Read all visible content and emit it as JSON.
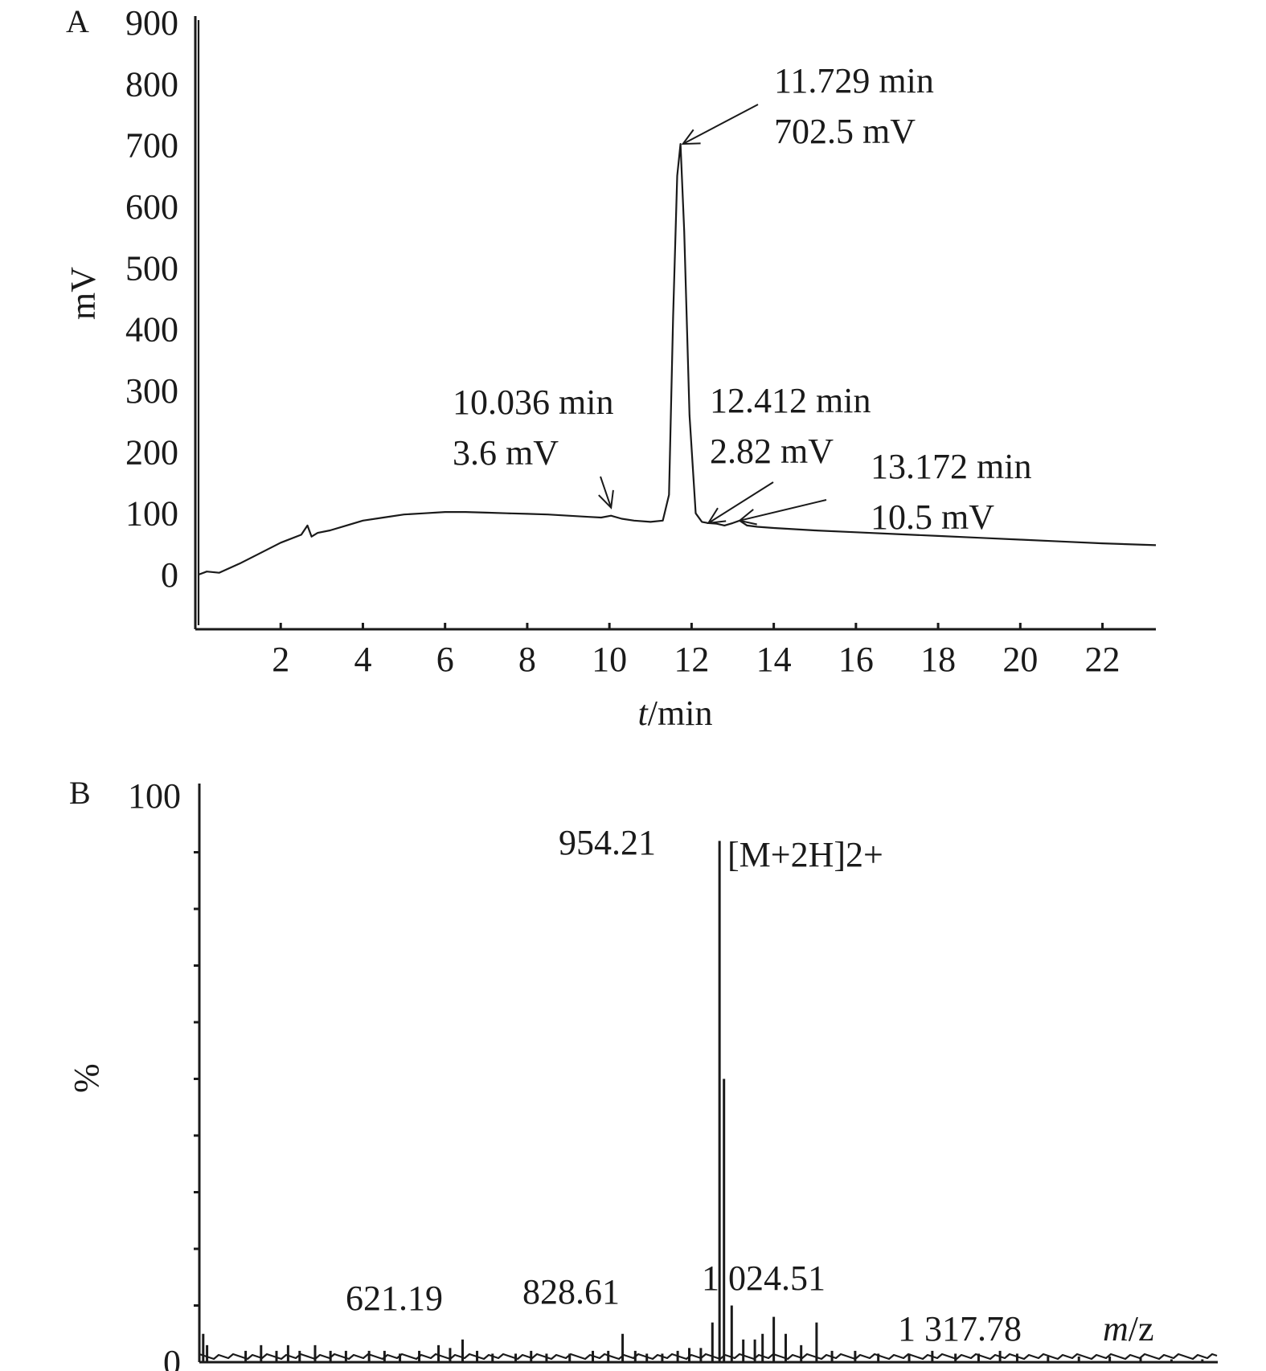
{
  "chart_data": [
    {
      "panel": "A",
      "type": "line",
      "xlabel_italic": "t",
      "xlabel_rest": "/min",
      "ylabel": "mV",
      "xlim": [
        0,
        23.3
      ],
      "ylim": [
        -80,
        900
      ],
      "xticks": [
        2,
        4,
        6,
        8,
        10,
        12,
        14,
        16,
        18,
        20,
        22
      ],
      "yticks": [
        0,
        100,
        200,
        300,
        400,
        500,
        600,
        700,
        800,
        900
      ],
      "trace": {
        "x": [
          0.0,
          0.2,
          0.5,
          1.0,
          1.5,
          2.0,
          2.5,
          2.65,
          2.75,
          2.9,
          3.2,
          3.6,
          4.0,
          4.5,
          5.0,
          5.5,
          6.0,
          6.5,
          7.0,
          7.5,
          8.0,
          8.5,
          9.0,
          9.5,
          9.8,
          10.04,
          10.3,
          10.6,
          11.0,
          11.3,
          11.45,
          11.55,
          11.65,
          11.73,
          11.82,
          11.95,
          12.1,
          12.25,
          12.41,
          12.6,
          12.8,
          13.0,
          13.17,
          13.35,
          13.6,
          14.0,
          15.0,
          16.0,
          17.0,
          18.0,
          19.0,
          20.0,
          21.0,
          22.0,
          23.3
        ],
        "y": [
          0,
          5,
          3,
          18,
          35,
          52,
          65,
          80,
          62,
          68,
          72,
          80,
          88,
          93,
          98,
          100,
          102,
          102,
          101,
          100,
          99,
          98,
          96,
          94,
          93,
          96,
          91,
          88,
          86,
          88,
          130,
          420,
          650,
          702,
          560,
          260,
          100,
          86,
          84,
          83,
          80,
          84,
          88,
          80,
          78,
          76,
          72,
          69,
          66,
          63,
          60,
          57,
          54,
          51,
          48
        ]
      },
      "annotations": [
        {
          "time": "10.036 min",
          "value": "3.6 mV",
          "x": 10.04,
          "y": 96
        },
        {
          "time": "11.729 min",
          "value": "702.5 mV",
          "x": 11.73,
          "y": 702
        },
        {
          "time": "12.412 min",
          "value": "2.82 mV",
          "x": 12.41,
          "y": 84
        },
        {
          "time": "13.172 min",
          "value": "10.5 mV",
          "x": 13.17,
          "y": 88
        }
      ]
    },
    {
      "panel": "B",
      "type": "bar",
      "xlabel_italic": "m",
      "xlabel_rest": "/z",
      "ylabel": "%",
      "xlim": [
        280,
        1600
      ],
      "ylim": [
        0,
        100
      ],
      "yticks": [
        0,
        100
      ],
      "peaks": {
        "mz": [
          285,
          290,
          340,
          360,
          380,
          395,
          410,
          430,
          450,
          470,
          500,
          520,
          540,
          565,
          590,
          605,
          621.19,
          640,
          660,
          690,
          710,
          730,
          760,
          790,
          810,
          828.61,
          845,
          860,
          880,
          900,
          915,
          930,
          945,
          954.21,
          960,
          970,
          985,
          1000,
          1010,
          1024.51,
          1040,
          1060,
          1080,
          1100,
          1130,
          1160,
          1200,
          1230,
          1260,
          1290,
          1317.78,
          1340,
          1380,
          1420,
          1460,
          1500,
          1540,
          1580
        ],
        "intensity": [
          5,
          3,
          2,
          3,
          2,
          3,
          2,
          3,
          2,
          2,
          2,
          2,
          1.5,
          2,
          3,
          2.5,
          4,
          2,
          1.5,
          1.5,
          2,
          1.5,
          1.5,
          2,
          2,
          5,
          2,
          1.5,
          1.5,
          2,
          2.5,
          2.5,
          7,
          92,
          50,
          10,
          4,
          4,
          5,
          8,
          5,
          3,
          7,
          2,
          2,
          1.5,
          1.5,
          2,
          1.5,
          1.5,
          2,
          1.5,
          1,
          1,
          1,
          0.8,
          0.5,
          0.5
        ]
      },
      "annotations": [
        {
          "label": "954.21",
          "mz": 954.21
        },
        {
          "label": "[M+2H]2+",
          "mz": 954.21
        },
        {
          "label": "621.19",
          "mz": 621.19
        },
        {
          "label": "828.61",
          "mz": 828.61
        },
        {
          "label": "1 024.51",
          "mz": 1024.51
        },
        {
          "label": "1 317.78",
          "mz": 1317.78
        }
      ]
    }
  ]
}
